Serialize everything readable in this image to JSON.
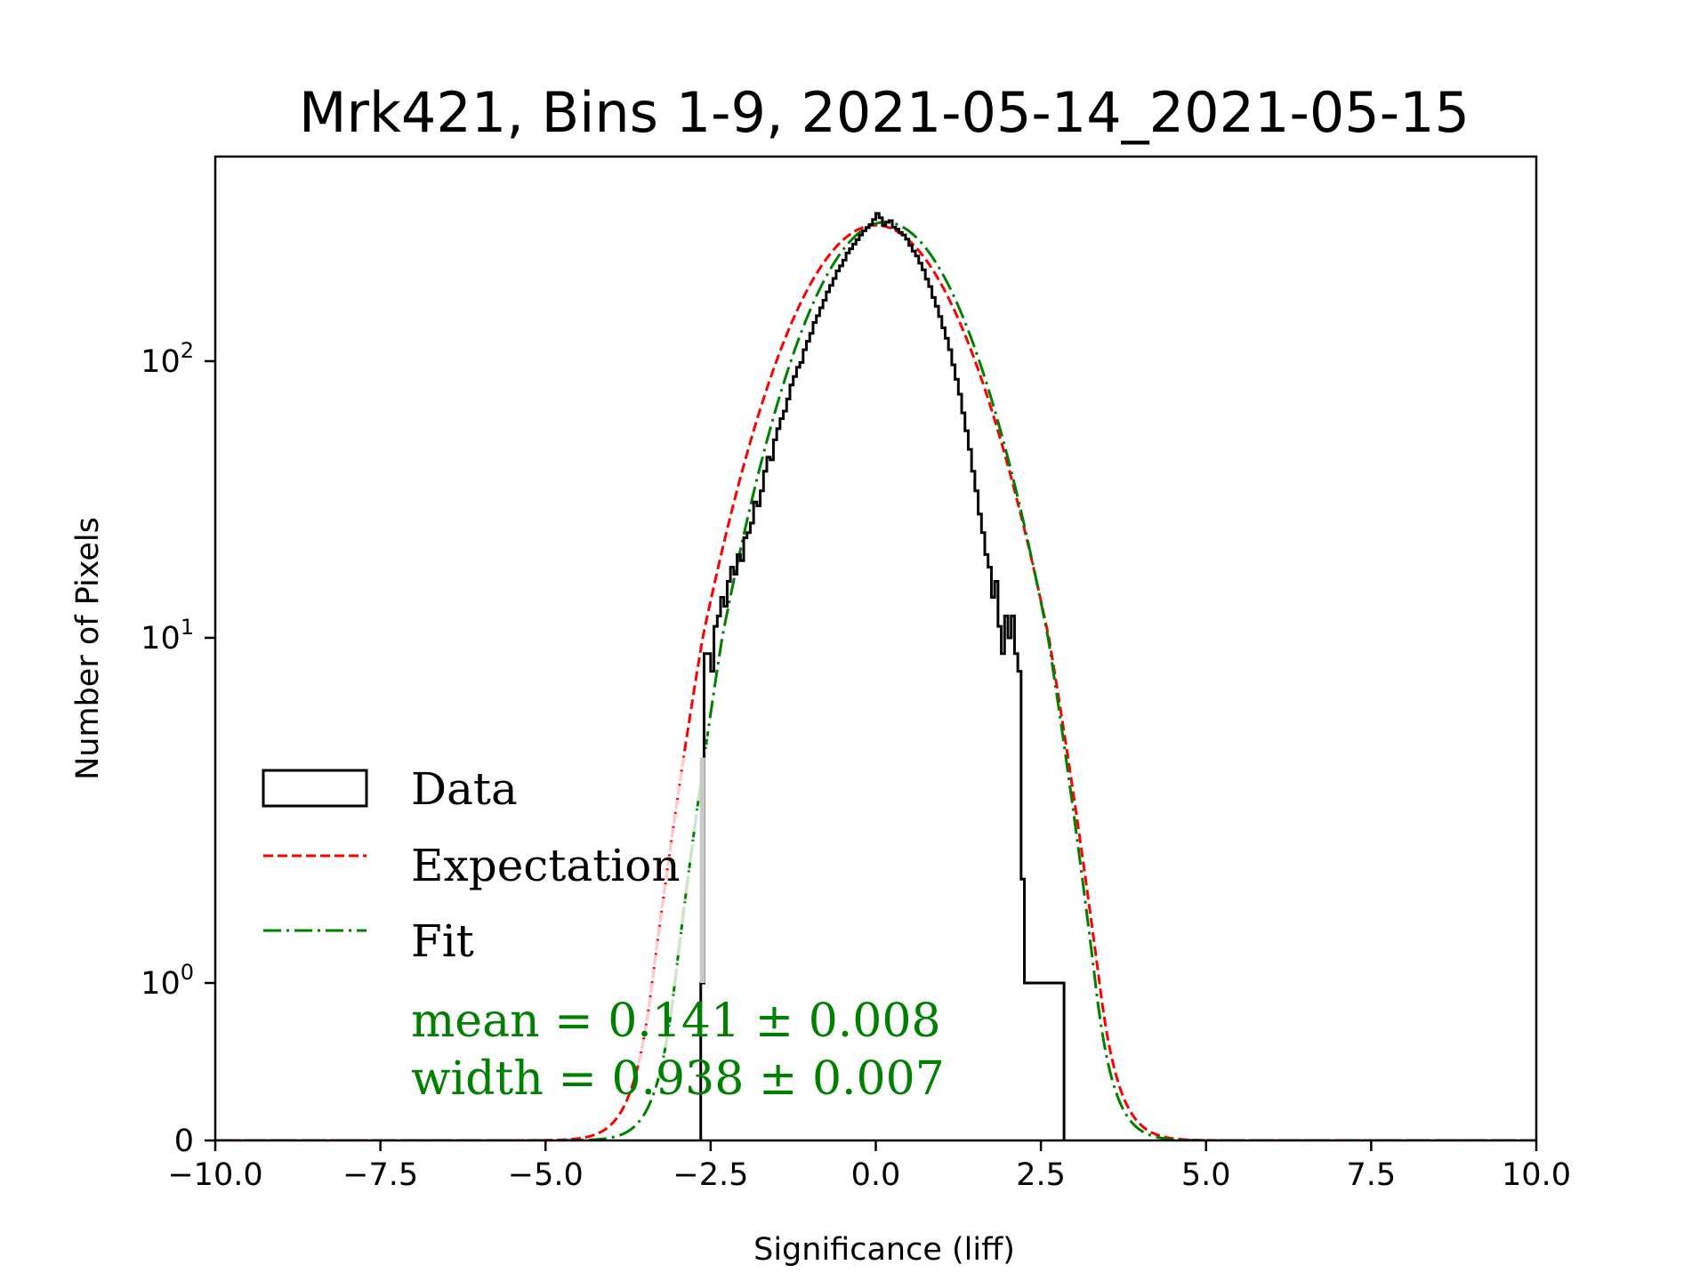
{
  "chart_data": {
    "type": "line",
    "title": "Mrk421, Bins 1-9, 2021-05-14_2021-05-15",
    "xlabel": "Significance (liff)",
    "ylabel": "Number of Pixels",
    "xlim": [
      -10,
      10
    ],
    "yscale": "symlog",
    "x_ticks": [
      -10.0,
      -7.5,
      -5.0,
      -2.5,
      0.0,
      2.5,
      5.0,
      7.5,
      10.0
    ],
    "x_tick_labels": [
      "−10.0",
      "−7.5",
      "−5.0",
      "−2.5",
      "0.0",
      "2.5",
      "5.0",
      "7.5",
      "10.0"
    ],
    "y_ticks": [
      {
        "value": 0,
        "label": "0",
        "exp": ""
      },
      {
        "value": 1,
        "label": "10",
        "exp": "0"
      },
      {
        "value": 10,
        "label": "10",
        "exp": "1"
      },
      {
        "value": 100,
        "label": "10",
        "exp": "2"
      }
    ],
    "legend": {
      "location": "center-left",
      "entries": [
        {
          "label": "Data",
          "style": "histogram-outline",
          "color": "#000000"
        },
        {
          "label": "Expectation",
          "style": "dashed",
          "color": "#ff0000"
        },
        {
          "label": "Fit",
          "style": "dash-dot",
          "color": "#008000"
        }
      ]
    },
    "annotations": [
      {
        "text": "mean = 0.141 ± 0.008",
        "color": "#008000"
      },
      {
        "text": "width = 0.938 ± 0.007",
        "color": "#008000"
      }
    ],
    "series": [
      {
        "name": "Expectation",
        "kind": "gaussian",
        "mean": 0.0,
        "sigma": 1.0,
        "peak": 310,
        "color": "#ff0000"
      },
      {
        "name": "Fit",
        "kind": "gaussian",
        "mean": 0.141,
        "sigma": 0.938,
        "peak": 318,
        "color": "#008000"
      },
      {
        "name": "Data",
        "kind": "histogram",
        "color": "#000000",
        "x_range": [
          -2.65,
          2.85
        ],
        "bin_edges_start": -2.65,
        "bin_width": 0.05,
        "counts": [
          1,
          9,
          9,
          8,
          11,
          12,
          14,
          13,
          16,
          18,
          17,
          20,
          19,
          23,
          24,
          26,
          31,
          30,
          34,
          40,
          45,
          44,
          52,
          57,
          62,
          66,
          73,
          82,
          88,
          95,
          99,
          110,
          118,
          126,
          138,
          146,
          156,
          166,
          178,
          188,
          199,
          212,
          221,
          232,
          246,
          255,
          265,
          275,
          286,
          296,
          304,
          312,
          325,
          342,
          330,
          310,
          318,
          322,
          305,
          300,
          292,
          286,
          276,
          262,
          250,
          240,
          226,
          214,
          198,
          186,
          170,
          158,
          145,
          132,
          121,
          110,
          97,
          86,
          76,
          65,
          56,
          48,
          40,
          34,
          28,
          24,
          20,
          18,
          14,
          16,
          11,
          9,
          12,
          10,
          12,
          9,
          8,
          2,
          1,
          1,
          1,
          1,
          1,
          1,
          1,
          1,
          1,
          1,
          1,
          1
        ]
      }
    ]
  }
}
